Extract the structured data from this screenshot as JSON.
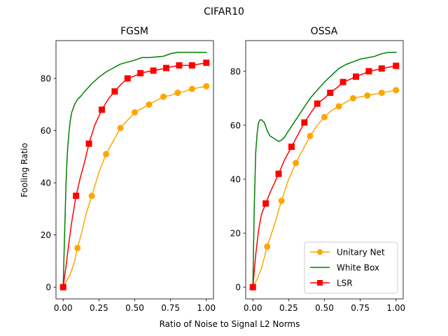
{
  "figure": {
    "title": "CIFAR10",
    "xlabel": "Ratio of Noise to Signal L2 Norms",
    "ylabel": "Fooling Ratio"
  },
  "colors": {
    "unitary": "#ffa500",
    "whitebox": "#008000",
    "lsr": "#ff0000"
  },
  "chart_data": [
    {
      "type": "line",
      "title": "FGSM",
      "xlim": [
        -0.05,
        1.05
      ],
      "ylim": [
        -4.5,
        94.5
      ],
      "xticks": [
        0.0,
        0.25,
        0.5,
        0.75,
        1.0
      ],
      "xtick_labels": [
        "0.00",
        "0.25",
        "0.50",
        "0.75",
        "1.00"
      ],
      "yticks": [
        0,
        20,
        40,
        60,
        80
      ],
      "ytick_labels": [
        "0",
        "20",
        "40",
        "60",
        "80"
      ],
      "grid": false,
      "legend": null,
      "series": [
        {
          "name": "Unitary Net",
          "color_key": "unitary",
          "marker": "circle",
          "x": [
            0.0,
            0.02,
            0.05,
            0.08,
            0.1,
            0.13,
            0.16,
            0.2,
            0.25,
            0.3,
            0.35,
            0.4,
            0.45,
            0.5,
            0.55,
            0.6,
            0.65,
            0.7,
            0.75,
            0.8,
            0.85,
            0.9,
            0.95,
            1.0
          ],
          "y": [
            0,
            2,
            5,
            10,
            15,
            21,
            28,
            35,
            44,
            51,
            56,
            61,
            64,
            67,
            68.5,
            70,
            71.5,
            73,
            73.5,
            74.5,
            75,
            76,
            76.5,
            77
          ],
          "marker_x": [
            0.0,
            0.1,
            0.2,
            0.3,
            0.4,
            0.5,
            0.6,
            0.7,
            0.8,
            0.9,
            1.0
          ],
          "marker_y": [
            0,
            15,
            35,
            51,
            61,
            67,
            70,
            73,
            74.5,
            76,
            77
          ]
        },
        {
          "name": "White Box",
          "color_key": "whitebox",
          "marker": "none",
          "x": [
            0.0,
            0.005,
            0.01,
            0.015,
            0.02,
            0.03,
            0.04,
            0.05,
            0.06,
            0.08,
            0.1,
            0.12,
            0.15,
            0.2,
            0.25,
            0.3,
            0.35,
            0.4,
            0.5,
            0.55,
            0.6,
            0.7,
            0.75,
            0.8,
            0.9,
            1.0
          ],
          "y": [
            0,
            10,
            20,
            30,
            40,
            52,
            59,
            64,
            67,
            70,
            72,
            73,
            75,
            78,
            80.5,
            82.5,
            84,
            85.5,
            87,
            88,
            88,
            88.5,
            89.5,
            90,
            90,
            90
          ],
          "marker_x": [],
          "marker_y": []
        },
        {
          "name": "LSR",
          "color_key": "lsr",
          "marker": "square",
          "x": [
            0.0,
            0.02,
            0.04,
            0.06,
            0.09,
            0.12,
            0.15,
            0.18,
            0.22,
            0.27,
            0.32,
            0.36,
            0.4,
            0.45,
            0.5,
            0.54,
            0.58,
            0.63,
            0.68,
            0.72,
            0.76,
            0.81,
            0.86,
            0.9,
            0.95,
            1.0
          ],
          "y": [
            0,
            8,
            17,
            25,
            35,
            42,
            48,
            55,
            62,
            68,
            72.5,
            75,
            77.5,
            80,
            81,
            82,
            82.5,
            83,
            83.5,
            84,
            84.5,
            85,
            85,
            85,
            85.5,
            86
          ],
          "marker_x": [
            0.0,
            0.09,
            0.18,
            0.27,
            0.36,
            0.45,
            0.54,
            0.63,
            0.72,
            0.81,
            0.9,
            1.0
          ],
          "marker_y": [
            0,
            35,
            55,
            68,
            75,
            80,
            82,
            83,
            84,
            85,
            85,
            86
          ]
        }
      ]
    },
    {
      "type": "line",
      "title": "OSSA",
      "xlim": [
        -0.05,
        1.05
      ],
      "ylim": [
        -4.35,
        91.35
      ],
      "xticks": [
        0.0,
        0.25,
        0.5,
        0.75,
        1.0
      ],
      "xtick_labels": [
        "0.00",
        "0.25",
        "0.50",
        "0.75",
        "1.00"
      ],
      "yticks": [
        0,
        20,
        40,
        60,
        80
      ],
      "ytick_labels": [
        "0",
        "20",
        "40",
        "60",
        "80"
      ],
      "grid": false,
      "legend": {
        "position": "lower-right",
        "entries": [
          "Unitary Net",
          "White Box",
          "LSR"
        ]
      },
      "series": [
        {
          "name": "Unitary Net",
          "color_key": "unitary",
          "marker": "circle",
          "x": [
            0.0,
            0.03,
            0.06,
            0.1,
            0.15,
            0.2,
            0.25,
            0.3,
            0.35,
            0.4,
            0.45,
            0.5,
            0.55,
            0.6,
            0.65,
            0.7,
            0.75,
            0.8,
            0.85,
            0.9,
            0.95,
            1.0
          ],
          "y": [
            0,
            3,
            7,
            15,
            23,
            32,
            40,
            46,
            51,
            56,
            60,
            63,
            65.5,
            67,
            68.5,
            70,
            70.5,
            71,
            71.5,
            72,
            72.5,
            73
          ],
          "marker_x": [
            0.0,
            0.1,
            0.2,
            0.3,
            0.4,
            0.5,
            0.6,
            0.7,
            0.8,
            0.9,
            1.0
          ],
          "marker_y": [
            0,
            15,
            32,
            46,
            56,
            63,
            67,
            70,
            71,
            72,
            73
          ]
        },
        {
          "name": "White Box",
          "color_key": "whitebox",
          "marker": "none",
          "x": [
            0.0,
            0.01,
            0.02,
            0.03,
            0.04,
            0.05,
            0.06,
            0.08,
            0.1,
            0.12,
            0.15,
            0.18,
            0.2,
            0.22,
            0.25,
            0.3,
            0.35,
            0.4,
            0.45,
            0.5,
            0.55,
            0.6,
            0.65,
            0.7,
            0.75,
            0.8,
            0.85,
            0.9,
            0.95,
            1.0
          ],
          "y": [
            0,
            30,
            50,
            57,
            61,
            62,
            62,
            61,
            58,
            56,
            55,
            54,
            54.5,
            55.5,
            58,
            62,
            66,
            70,
            73,
            76,
            78.5,
            81,
            82.5,
            83.5,
            84.5,
            85,
            85.5,
            86.5,
            87,
            87
          ],
          "marker_x": [],
          "marker_y": []
        },
        {
          "name": "LSR",
          "color_key": "lsr",
          "marker": "square",
          "x": [
            0.0,
            0.02,
            0.04,
            0.06,
            0.09,
            0.12,
            0.15,
            0.18,
            0.22,
            0.27,
            0.32,
            0.36,
            0.41,
            0.45,
            0.5,
            0.54,
            0.59,
            0.63,
            0.68,
            0.72,
            0.77,
            0.81,
            0.86,
            0.9,
            0.95,
            1.0
          ],
          "y": [
            0,
            12,
            21,
            27,
            31,
            35,
            38.5,
            42,
            47,
            52,
            57,
            61,
            65,
            68,
            70,
            72,
            74,
            76,
            77,
            78,
            79,
            80,
            80.5,
            81,
            81.5,
            82
          ],
          "marker_x": [
            0.0,
            0.09,
            0.18,
            0.27,
            0.36,
            0.45,
            0.54,
            0.63,
            0.72,
            0.81,
            0.9,
            1.0
          ],
          "marker_y": [
            0,
            31,
            42,
            52,
            61,
            68,
            72,
            76,
            78,
            80,
            81,
            82
          ]
        }
      ]
    }
  ]
}
